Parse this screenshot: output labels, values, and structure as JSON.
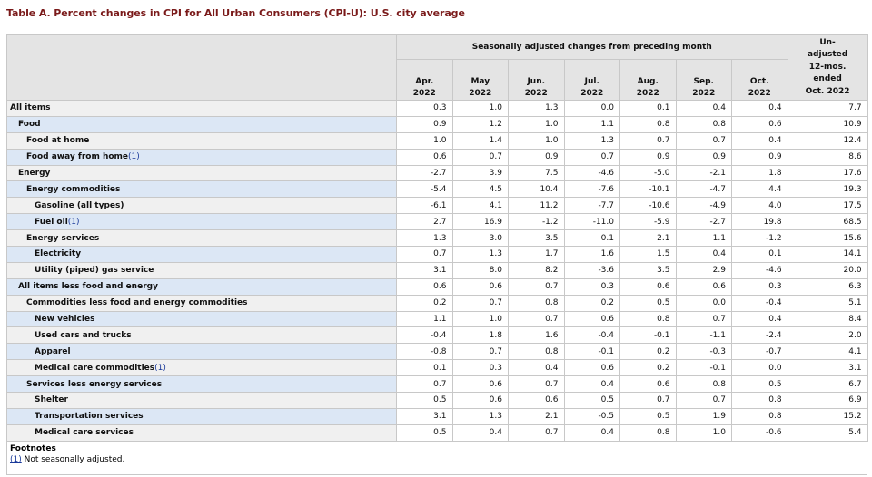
{
  "caption": "Table A. Percent changes in CPI for All Urban Consumers (CPI-U): U.S. city average",
  "header": {
    "span_label": "Seasonally adjusted changes from preceding month",
    "months": [
      {
        "month": "Apr.",
        "year": "2022"
      },
      {
        "month": "May",
        "year": "2022"
      },
      {
        "month": "Jun.",
        "year": "2022"
      },
      {
        "month": "Jul.",
        "year": "2022"
      },
      {
        "month": "Aug.",
        "year": "2022"
      },
      {
        "month": "Sep.",
        "year": "2022"
      },
      {
        "month": "Oct.",
        "year": "2022"
      }
    ],
    "unadjusted": [
      "Un-",
      "adjusted",
      "12-mos.",
      "ended",
      "Oct. 2022"
    ]
  },
  "rows": [
    {
      "label": "All items",
      "indent": 0,
      "fn": "",
      "values": [
        "0.3",
        "1.0",
        "1.3",
        "0.0",
        "0.1",
        "0.4",
        "0.4",
        "7.7"
      ]
    },
    {
      "label": "Food",
      "indent": 1,
      "fn": "",
      "values": [
        "0.9",
        "1.2",
        "1.0",
        "1.1",
        "0.8",
        "0.8",
        "0.6",
        "10.9"
      ]
    },
    {
      "label": "Food at home",
      "indent": 2,
      "fn": "",
      "values": [
        "1.0",
        "1.4",
        "1.0",
        "1.3",
        "0.7",
        "0.7",
        "0.4",
        "12.4"
      ]
    },
    {
      "label": "Food away from home",
      "indent": 2,
      "fn": "(1)",
      "values": [
        "0.6",
        "0.7",
        "0.9",
        "0.7",
        "0.9",
        "0.9",
        "0.9",
        "8.6"
      ]
    },
    {
      "label": "Energy",
      "indent": 1,
      "fn": "",
      "values": [
        "-2.7",
        "3.9",
        "7.5",
        "-4.6",
        "-5.0",
        "-2.1",
        "1.8",
        "17.6"
      ]
    },
    {
      "label": "Energy commodities",
      "indent": 2,
      "fn": "",
      "values": [
        "-5.4",
        "4.5",
        "10.4",
        "-7.6",
        "-10.1",
        "-4.7",
        "4.4",
        "19.3"
      ]
    },
    {
      "label": "Gasoline (all types)",
      "indent": 3,
      "fn": "",
      "values": [
        "-6.1",
        "4.1",
        "11.2",
        "-7.7",
        "-10.6",
        "-4.9",
        "4.0",
        "17.5"
      ]
    },
    {
      "label": "Fuel oil",
      "indent": 3,
      "fn": "(1)",
      "values": [
        "2.7",
        "16.9",
        "-1.2",
        "-11.0",
        "-5.9",
        "-2.7",
        "19.8",
        "68.5"
      ]
    },
    {
      "label": "Energy services",
      "indent": 2,
      "fn": "",
      "values": [
        "1.3",
        "3.0",
        "3.5",
        "0.1",
        "2.1",
        "1.1",
        "-1.2",
        "15.6"
      ]
    },
    {
      "label": "Electricity",
      "indent": 3,
      "fn": "",
      "values": [
        "0.7",
        "1.3",
        "1.7",
        "1.6",
        "1.5",
        "0.4",
        "0.1",
        "14.1"
      ]
    },
    {
      "label": "Utility (piped) gas service",
      "indent": 3,
      "fn": "",
      "values": [
        "3.1",
        "8.0",
        "8.2",
        "-3.6",
        "3.5",
        "2.9",
        "-4.6",
        "20.0"
      ]
    },
    {
      "label": "All items less food and energy",
      "indent": 1,
      "fn": "",
      "values": [
        "0.6",
        "0.6",
        "0.7",
        "0.3",
        "0.6",
        "0.6",
        "0.3",
        "6.3"
      ]
    },
    {
      "label": "Commodities less food and energy commodities",
      "indent": 2,
      "fn": "",
      "values": [
        "0.2",
        "0.7",
        "0.8",
        "0.2",
        "0.5",
        "0.0",
        "-0.4",
        "5.1"
      ]
    },
    {
      "label": "New vehicles",
      "indent": 3,
      "fn": "",
      "values": [
        "1.1",
        "1.0",
        "0.7",
        "0.6",
        "0.8",
        "0.7",
        "0.4",
        "8.4"
      ]
    },
    {
      "label": "Used cars and trucks",
      "indent": 3,
      "fn": "",
      "values": [
        "-0.4",
        "1.8",
        "1.6",
        "-0.4",
        "-0.1",
        "-1.1",
        "-2.4",
        "2.0"
      ]
    },
    {
      "label": "Apparel",
      "indent": 3,
      "fn": "",
      "values": [
        "-0.8",
        "0.7",
        "0.8",
        "-0.1",
        "0.2",
        "-0.3",
        "-0.7",
        "4.1"
      ]
    },
    {
      "label": "Medical care commodities",
      "indent": 3,
      "fn": "(1)",
      "values": [
        "0.1",
        "0.3",
        "0.4",
        "0.6",
        "0.2",
        "-0.1",
        "0.0",
        "3.1"
      ]
    },
    {
      "label": "Services less energy services",
      "indent": 2,
      "fn": "",
      "values": [
        "0.7",
        "0.6",
        "0.7",
        "0.4",
        "0.6",
        "0.8",
        "0.5",
        "6.7"
      ]
    },
    {
      "label": "Shelter",
      "indent": 3,
      "fn": "",
      "values": [
        "0.5",
        "0.6",
        "0.6",
        "0.5",
        "0.7",
        "0.7",
        "0.8",
        "6.9"
      ]
    },
    {
      "label": "Transportation services",
      "indent": 3,
      "fn": "",
      "values": [
        "3.1",
        "1.3",
        "2.1",
        "-0.5",
        "0.5",
        "1.9",
        "0.8",
        "15.2"
      ]
    },
    {
      "label": "Medical care services",
      "indent": 3,
      "fn": "",
      "values": [
        "0.5",
        "0.4",
        "0.7",
        "0.4",
        "0.8",
        "1.0",
        "-0.6",
        "5.4"
      ]
    }
  ],
  "footnotes": {
    "title": "Footnotes",
    "items": [
      {
        "marker": "(1)",
        "text": " Not seasonally adjusted."
      }
    ]
  }
}
